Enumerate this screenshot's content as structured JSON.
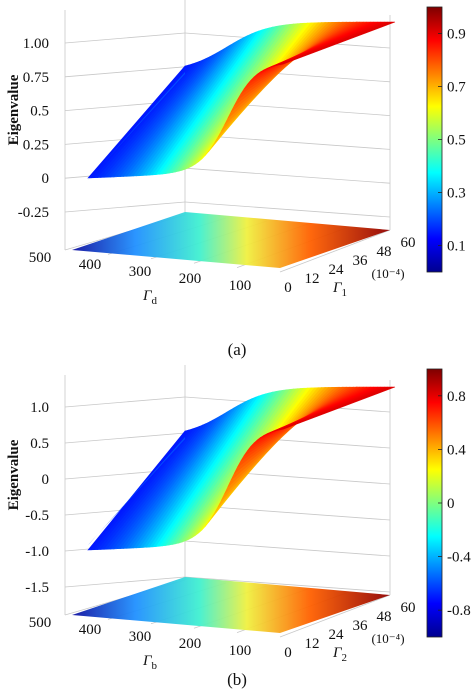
{
  "chart_data": [
    {
      "type": "surface",
      "caption": "(a)",
      "zlabel": "Eigenvalue",
      "x_axis": {
        "symbol": "Γ",
        "subscript": "d",
        "ticks": [
          "500",
          "400",
          "300",
          "200",
          "100"
        ]
      },
      "y_axis": {
        "symbol": "Γ",
        "subscript": "1",
        "unit": "(10⁻⁴)",
        "ticks": [
          "0",
          "12",
          "24",
          "36",
          "48",
          "60"
        ]
      },
      "z_ticks": [
        "1.00",
        "0.75",
        "0.5",
        "0.25",
        "0",
        "-0.25"
      ],
      "zlim": [
        -0.25,
        1.0
      ],
      "colorbar": {
        "ticks": [
          "0.9",
          "0.7",
          "0.5",
          "0.3",
          "0.1"
        ],
        "range": [
          0.0,
          1.0
        ],
        "colormap": "jet"
      },
      "grid": true
    },
    {
      "type": "surface",
      "caption": "(b)",
      "zlabel": "Eigenvalue",
      "x_axis": {
        "symbol": "Γ",
        "subscript": "b",
        "ticks": [
          "500",
          "400",
          "300",
          "200",
          "100"
        ]
      },
      "y_axis": {
        "symbol": "Γ",
        "subscript": "2",
        "unit": "(10⁻⁴)",
        "ticks": [
          "0",
          "12",
          "24",
          "36",
          "48",
          "60"
        ]
      },
      "z_ticks": [
        "1.0",
        "0.5",
        "0",
        "-0.5",
        "-1.0",
        "-1.5"
      ],
      "zlim": [
        -1.5,
        1.0
      ],
      "colorbar": {
        "ticks": [
          "0.8",
          "0.4",
          "0",
          "-0.4",
          "-0.8"
        ],
        "range": [
          -1.0,
          1.0
        ],
        "colormap": "jet"
      },
      "grid": true
    }
  ]
}
